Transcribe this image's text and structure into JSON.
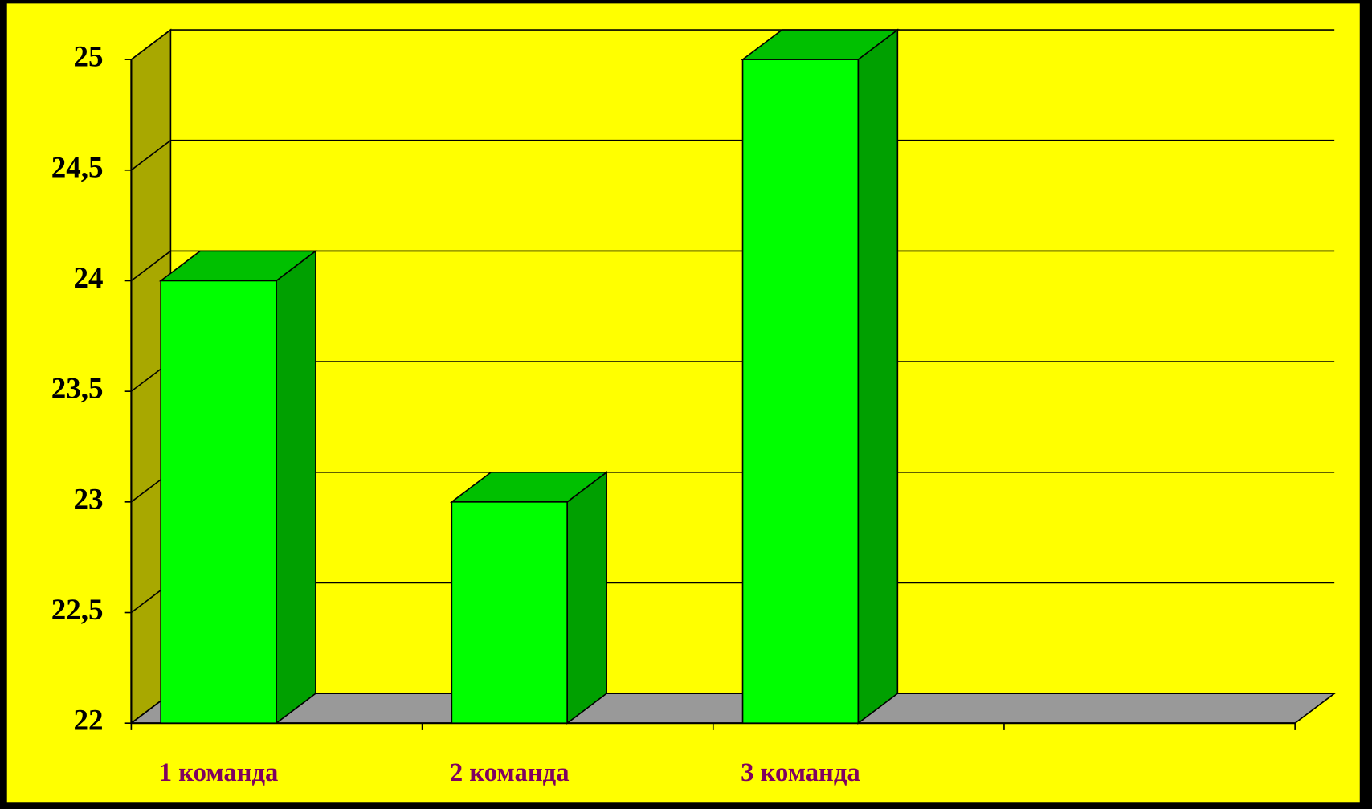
{
  "chart_data": {
    "type": "bar3d",
    "categories": [
      "1 команда",
      "2 команда",
      "3 команда",
      null
    ],
    "values": [
      24,
      23,
      25,
      null
    ],
    "color": "#00ff00",
    "ylim": [
      22,
      25
    ],
    "yticks": [
      22,
      {
        "value": 22.5,
        "label": "22,5"
      },
      23,
      {
        "value": 23.5,
        "label": "23,5"
      },
      24,
      {
        "value": 24.5,
        "label": "24,5"
      },
      25
    ],
    "grid": true
  }
}
